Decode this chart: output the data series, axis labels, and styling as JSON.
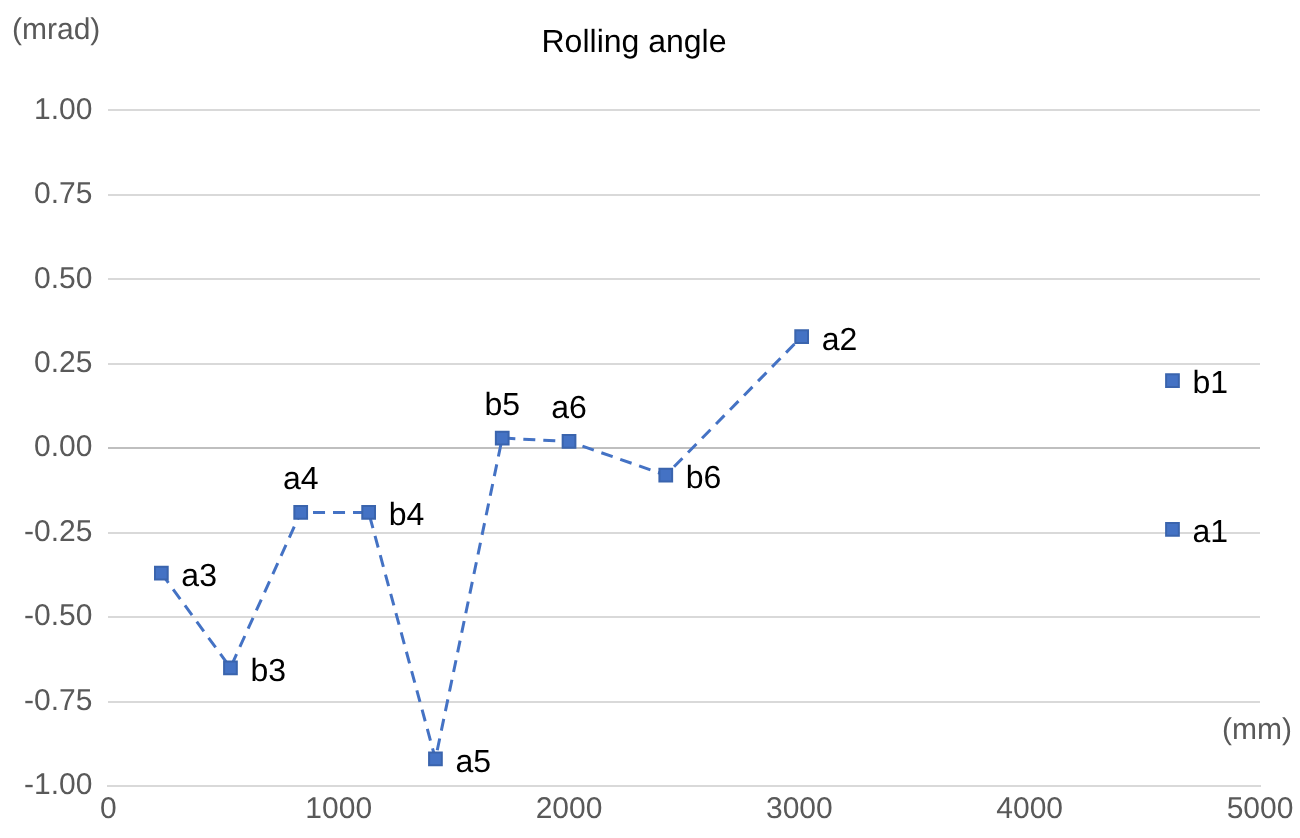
{
  "chart_data": {
    "type": "line",
    "title": "Rolling angle",
    "xlabel": "(mm)",
    "ylabel": "(mrad)",
    "series": [
      {
        "color": "#4472c4",
        "x": [
          230,
          530,
          835,
          1130,
          1420,
          1710,
          2000,
          2420,
          3010
        ],
        "values": [
          -0.37,
          -0.65,
          -0.19,
          -0.19,
          -0.92,
          0.03,
          0.02,
          -0.08,
          0.33
        ],
        "line_style": "dashed",
        "marker": "square"
      },
      {
        "type": "scatter",
        "color": "#4472c4",
        "x": [
          4620,
          4620
        ],
        "values": [
          0.2,
          -0.24
        ],
        "marker": "square"
      }
    ],
    "xlim": [
      0,
      5000
    ],
    "xticks": [
      0,
      1000,
      2000,
      3000,
      4000,
      5000
    ],
    "ylim": [
      -1,
      1
    ],
    "yticks": [
      {
        "value": -1,
        "label": "-1.00"
      },
      {
        "value": -0.75,
        "label": "-0.75"
      },
      {
        "value": -0.5,
        "label": "-0.50"
      },
      {
        "value": -0.25,
        "label": "-0.25"
      },
      {
        "value": 0,
        "label": "0.00"
      },
      {
        "value": 0.25,
        "label": "0.25"
      },
      {
        "value": 0.5,
        "label": "0.50"
      },
      {
        "value": 0.75,
        "label": "0.75"
      },
      {
        "value": 1,
        "label": "1.00"
      }
    ],
    "grid": "y",
    "legend": false,
    "annotations": [
      {
        "text": "a3",
        "x": 230,
        "y": -0.37
      },
      {
        "text": "b3",
        "x": 530,
        "y": -0.65
      },
      {
        "text": "a4",
        "x": 835,
        "y": -0.19
      },
      {
        "text": "b4",
        "x": 1130,
        "y": -0.19
      },
      {
        "text": "a5",
        "x": 1420,
        "y": -0.92
      },
      {
        "text": "b5",
        "x": 1710,
        "y": 0.03
      },
      {
        "text": "a6",
        "x": 2000,
        "y": 0.02
      },
      {
        "text": "b6",
        "x": 2420,
        "y": -0.08
      },
      {
        "text": "a2",
        "x": 3010,
        "y": 0.33
      },
      {
        "text": "b1",
        "x": 4620,
        "y": 0.2
      },
      {
        "text": "a1",
        "x": 4620,
        "y": -0.24
      }
    ]
  }
}
